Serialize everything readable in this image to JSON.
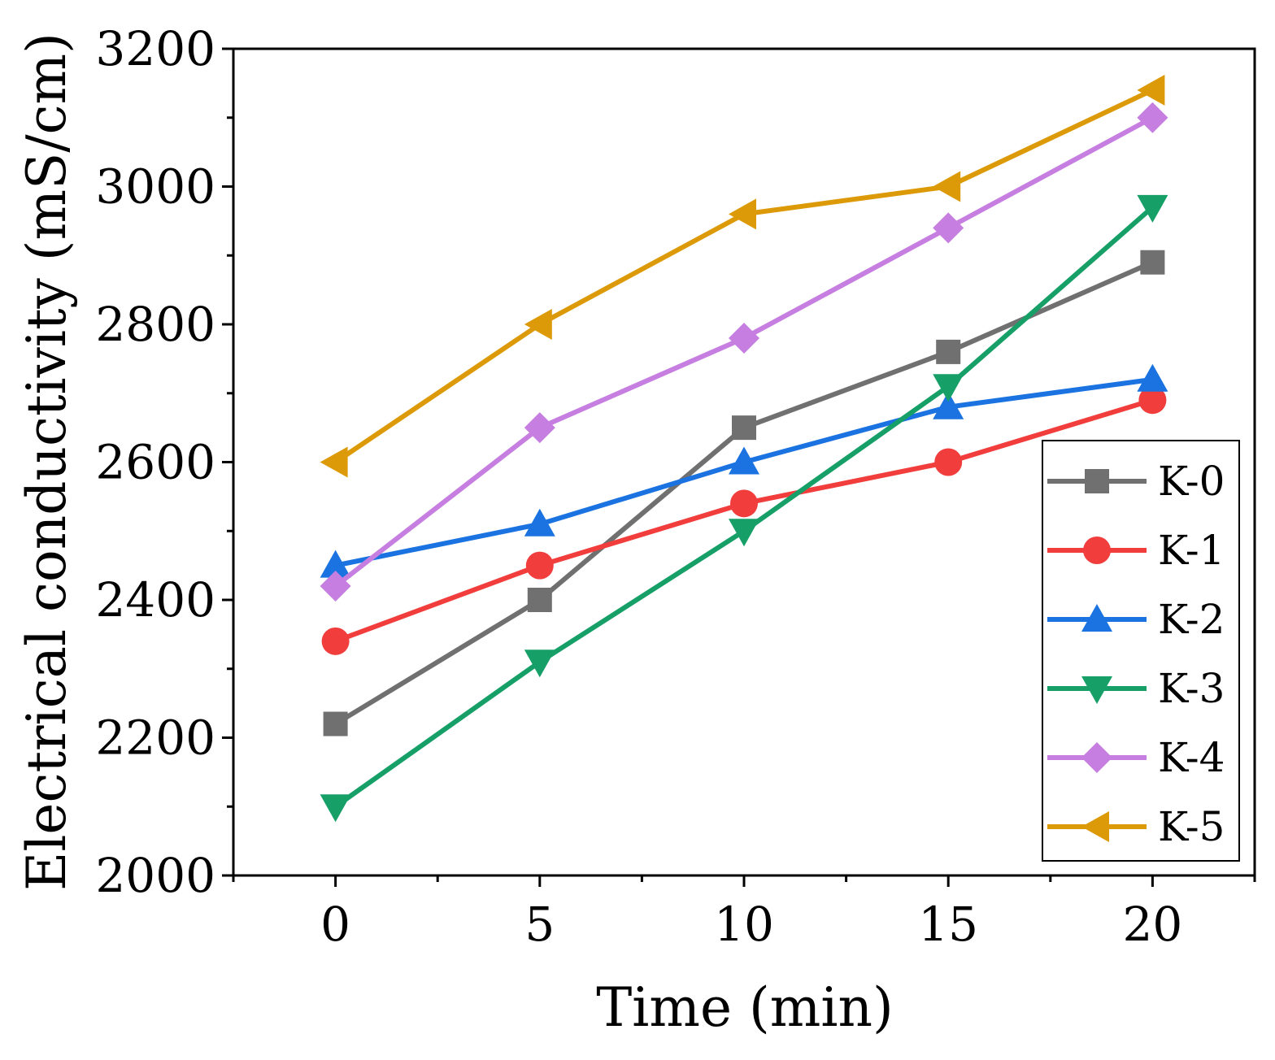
{
  "chart_data": {
    "type": "line",
    "title": "",
    "xlabel": "Time (min)",
    "ylabel": "Electrical conductivity (mS/cm)",
    "xlim": [
      -2.5,
      22.5
    ],
    "ylim": [
      2000,
      3200
    ],
    "xticks": [
      0,
      5,
      10,
      15,
      20
    ],
    "xtick_labels": [
      "0",
      "5",
      "10",
      "15",
      "20"
    ],
    "yticks": [
      2000,
      2200,
      2400,
      2600,
      2800,
      3000,
      3200
    ],
    "ytick_labels": [
      "2000",
      "2200",
      "2400",
      "2600",
      "2800",
      "3000",
      "3200"
    ],
    "grid": false,
    "legend_position": "bottom-right",
    "x": [
      0,
      5,
      10,
      15,
      20
    ],
    "series": [
      {
        "name": "K-0",
        "color": "#707070",
        "marker": "square",
        "values": [
          2220,
          2400,
          2650,
          2760,
          2890
        ]
      },
      {
        "name": "K-1",
        "color": "#f23d3d",
        "marker": "circle",
        "values": [
          2340,
          2450,
          2540,
          2600,
          2690
        ]
      },
      {
        "name": "K-2",
        "color": "#1a73e0",
        "marker": "triangle-up",
        "values": [
          2450,
          2510,
          2600,
          2680,
          2720
        ]
      },
      {
        "name": "K-3",
        "color": "#16a068",
        "marker": "triangle-down",
        "values": [
          2100,
          2310,
          2500,
          2710,
          2970
        ]
      },
      {
        "name": "K-4",
        "color": "#c67ee0",
        "marker": "diamond",
        "values": [
          2420,
          2650,
          2780,
          2940,
          3100
        ]
      },
      {
        "name": "K-5",
        "color": "#dd9a08",
        "marker": "triangle-left",
        "values": [
          2600,
          2800,
          2960,
          3000,
          3140
        ]
      }
    ]
  }
}
